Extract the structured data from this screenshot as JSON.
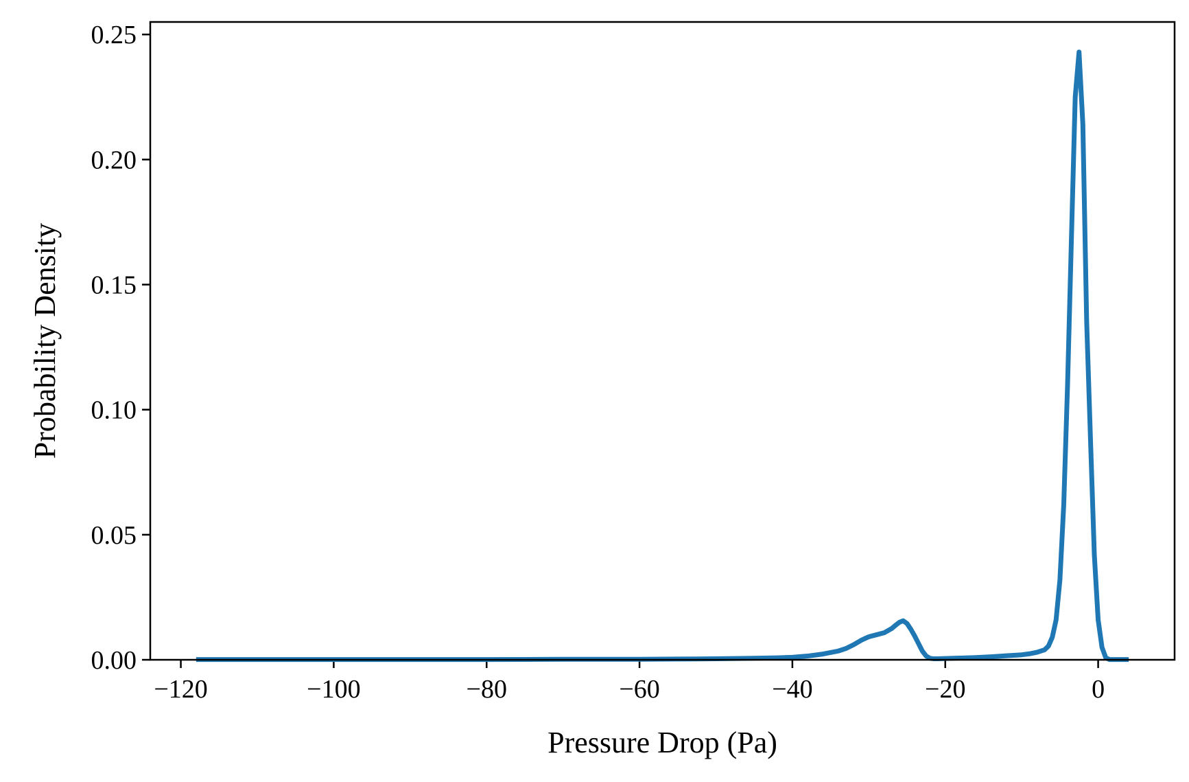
{
  "chart_data": {
    "type": "line",
    "title": "",
    "xlabel": "Pressure Drop (Pa)",
    "ylabel": "Probability Density",
    "xlim": [
      -124,
      10
    ],
    "ylim": [
      0,
      0.255
    ],
    "xticks": [
      -120,
      -100,
      -80,
      -60,
      -40,
      -20,
      0
    ],
    "xtick_labels": [
      "−120",
      "−100",
      "−80",
      "−60",
      "−40",
      "−20",
      "0"
    ],
    "yticks": [
      0.0,
      0.05,
      0.1,
      0.15,
      0.2,
      0.25
    ],
    "ytick_labels": [
      "0.00",
      "0.05",
      "0.10",
      "0.15",
      "0.20",
      "0.25"
    ],
    "grid": false,
    "legend": "none",
    "series": [
      {
        "color": "#1f77b4",
        "x": [
          -118,
          -110,
          -100,
          -90,
          -80,
          -70,
          -60,
          -55,
          -50,
          -45,
          -42,
          -40,
          -38,
          -36,
          -34,
          -33,
          -32,
          -31,
          -30,
          -29,
          -28,
          -27,
          -26.5,
          -26,
          -25.5,
          -25,
          -24.5,
          -24,
          -23.5,
          -23,
          -22.5,
          -22,
          -21.5,
          -21,
          -20,
          -18,
          -16,
          -14,
          -12,
          -10,
          -9,
          -8,
          -7,
          -6.5,
          -6,
          -5.5,
          -5,
          -4.5,
          -4,
          -3.5,
          -3,
          -2.5,
          -2,
          -1.5,
          -1,
          -0.5,
          0,
          0.5,
          1,
          1.5,
          2,
          2.5,
          3,
          3.5,
          4
        ],
        "y": [
          0.0001,
          0.0001,
          0.0001,
          0.0001,
          0.0001,
          0.0002,
          0.0002,
          0.0003,
          0.0004,
          0.0006,
          0.0008,
          0.001,
          0.0015,
          0.0023,
          0.0035,
          0.0045,
          0.006,
          0.0078,
          0.0092,
          0.01,
          0.0108,
          0.0125,
          0.0138,
          0.015,
          0.0156,
          0.0145,
          0.0122,
          0.0095,
          0.0065,
          0.0035,
          0.0015,
          0.0006,
          0.0004,
          0.0004,
          0.0005,
          0.0007,
          0.0009,
          0.0012,
          0.0016,
          0.002,
          0.0024,
          0.003,
          0.004,
          0.0055,
          0.009,
          0.016,
          0.032,
          0.062,
          0.11,
          0.168,
          0.225,
          0.243,
          0.214,
          0.135,
          0.088,
          0.042,
          0.016,
          0.005,
          0.0008,
          0.0001,
          0.0001,
          0.0001,
          0.0001,
          0.0001,
          0.0001
        ]
      }
    ]
  }
}
